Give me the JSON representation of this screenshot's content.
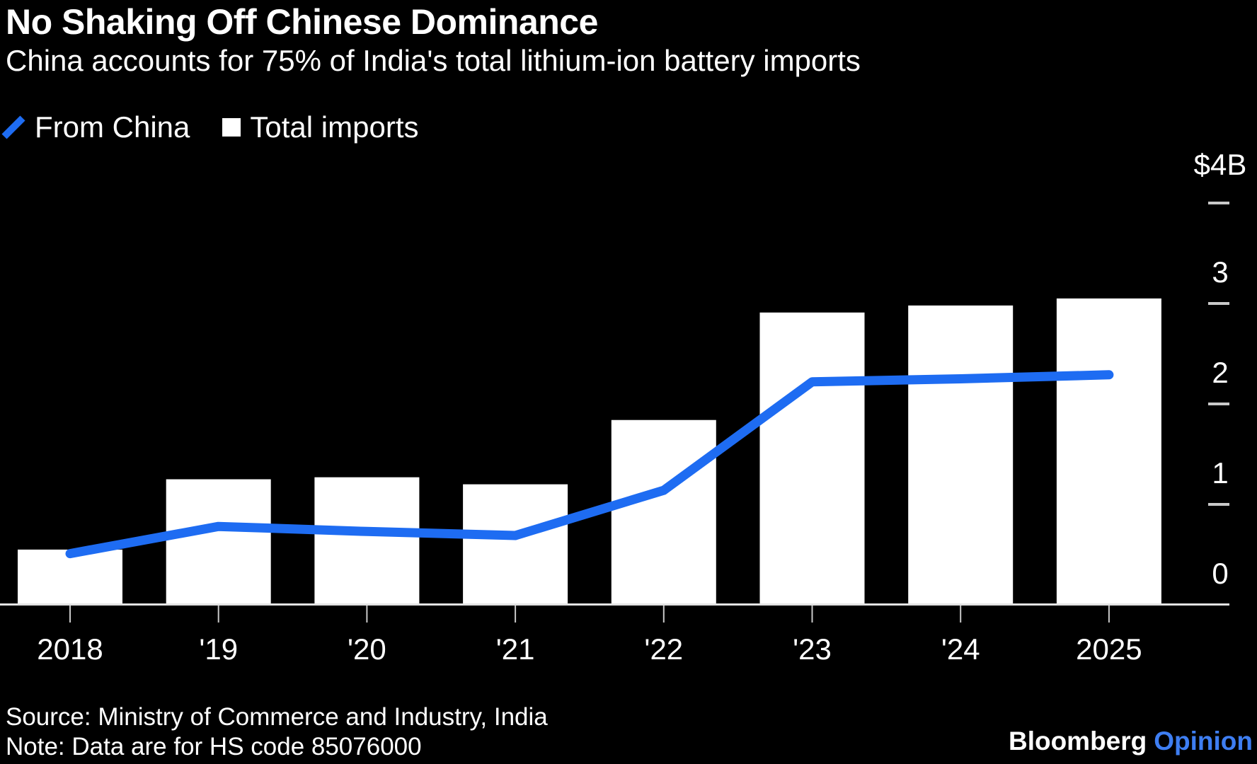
{
  "header": {
    "title": "No Shaking Off Chinese Dominance",
    "subtitle": "China accounts for 75% of India's total lithium-ion battery imports"
  },
  "legend": [
    {
      "label": "From China",
      "swatch": "line-slash-icon",
      "color": "#1e6cf2"
    },
    {
      "label": "Total imports",
      "swatch": "bar-square-icon",
      "color": "#ffffff"
    }
  ],
  "chart_data": {
    "type": "bar",
    "title": "No Shaking Off Chinese Dominance",
    "subtitle": "China accounts for 75% of India's total lithium-ion battery imports",
    "categories": [
      "2018",
      "'19",
      "'20",
      "'21",
      "'22",
      "'23",
      "'24",
      "2025"
    ],
    "series": [
      {
        "name": "Total imports",
        "type": "bar",
        "color": "#ffffff",
        "values": [
          0.55,
          1.25,
          1.27,
          1.2,
          1.84,
          2.91,
          2.98,
          3.05
        ]
      },
      {
        "name": "From China",
        "type": "line",
        "color": "#1e6cf2",
        "values": [
          0.51,
          0.78,
          0.73,
          0.69,
          1.14,
          2.22,
          2.25,
          2.29
        ]
      }
    ],
    "unit": "$B",
    "xlabel": "",
    "ylabel": "",
    "y_axis": {
      "side": "right",
      "ylim": [
        0,
        4
      ],
      "ticks": [
        0,
        1,
        2,
        3,
        4
      ],
      "tick_labels": [
        "0",
        "1",
        "2",
        "3",
        "$4B"
      ]
    },
    "grid": false,
    "legend_position": "top-left",
    "background": "#000000",
    "axis_color": "#e3e3e3",
    "tick_color": "#c9c9c9",
    "label_color": "#ffffff"
  },
  "footer": {
    "source": "Source: Ministry of Commerce and Industry, India",
    "note": "Note: Data are for HS code 85076000",
    "brand": "Bloomberg",
    "brand_suffix": "Opinion",
    "brand_suffix_color": "#3e7ef2"
  }
}
